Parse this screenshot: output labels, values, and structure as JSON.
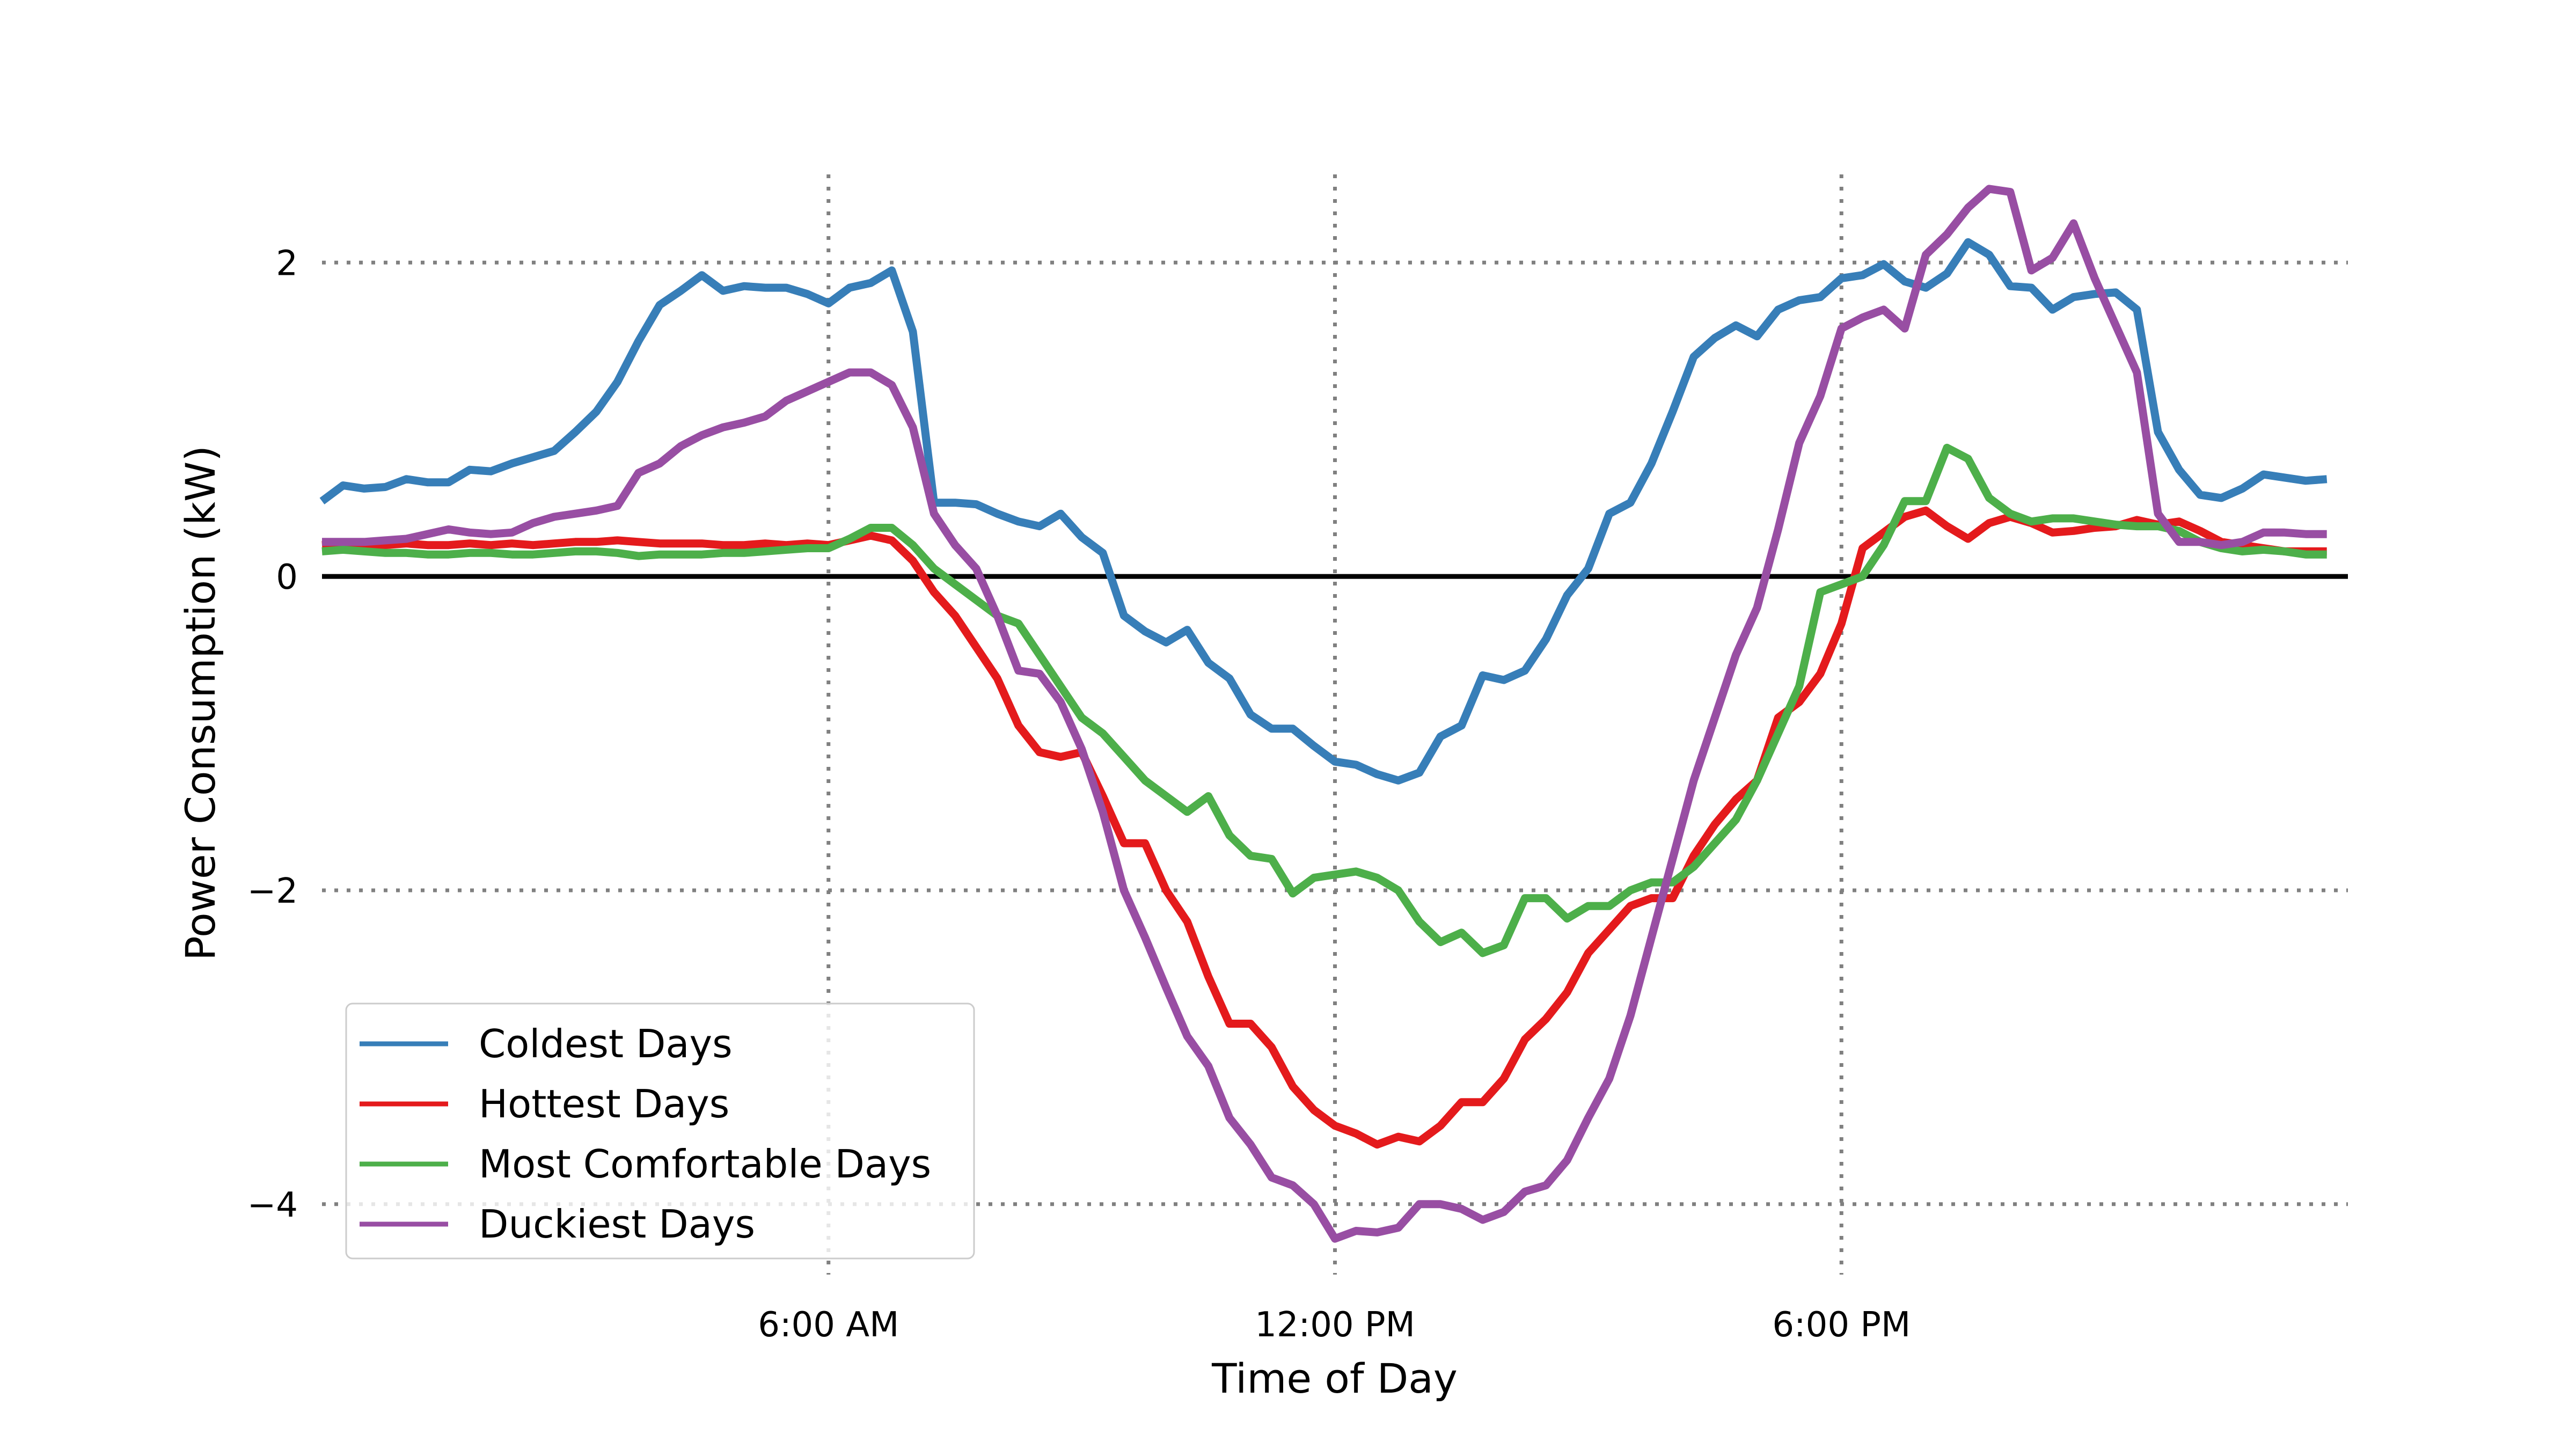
{
  "chart_data": {
    "type": "line",
    "title": "",
    "xlabel": "Time of Day",
    "ylabel": "Power Consumption (kW)",
    "x_unit": "hour of day",
    "xlim": [
      0,
      24
    ],
    "ylim": [
      -4.5,
      2.75
    ],
    "x_ticks": [
      {
        "value": 6,
        "label": "6:00 AM"
      },
      {
        "value": 12,
        "label": "12:00 PM"
      },
      {
        "value": 18,
        "label": "6:00 PM"
      }
    ],
    "y_ticks": [
      {
        "value": -4,
        "label": "−4"
      },
      {
        "value": -2,
        "label": "−2"
      },
      {
        "value": 0,
        "label": "0"
      },
      {
        "value": 2,
        "label": "2"
      }
    ],
    "grid": "dotted at ticks",
    "zero_line": true,
    "legend_position": "bottom-left",
    "x_start": 0,
    "x_step": 0.25,
    "series": [
      {
        "name": "Coldest Days",
        "color": "#377eb8",
        "values": [
          0.48,
          0.58,
          0.56,
          0.57,
          0.62,
          0.6,
          0.6,
          0.68,
          0.67,
          0.72,
          0.76,
          0.8,
          0.92,
          1.05,
          1.24,
          1.5,
          1.73,
          1.82,
          1.92,
          1.82,
          1.85,
          1.84,
          1.84,
          1.8,
          1.74,
          1.84,
          1.87,
          1.95,
          1.56,
          0.47,
          0.47,
          0.46,
          0.4,
          0.35,
          0.32,
          0.4,
          0.25,
          0.15,
          -0.25,
          -0.35,
          -0.42,
          -0.34,
          -0.55,
          -0.65,
          -0.88,
          -0.97,
          -0.97,
          -1.08,
          -1.18,
          -1.2,
          -1.26,
          -1.3,
          -1.25,
          -1.02,
          -0.95,
          -0.63,
          -0.66,
          -0.6,
          -0.4,
          -0.12,
          0.05,
          0.4,
          0.47,
          0.72,
          1.05,
          1.4,
          1.52,
          1.6,
          1.53,
          1.7,
          1.76,
          1.78,
          1.9,
          1.92,
          1.99,
          1.88,
          1.84,
          1.93,
          2.13,
          2.05,
          1.85,
          1.84,
          1.7,
          1.78,
          1.8,
          1.81,
          1.7,
          0.92,
          0.68,
          0.52,
          0.5,
          0.56,
          0.65,
          0.63,
          0.61,
          0.62
        ]
      },
      {
        "name": "Hottest Days",
        "color": "#e41a1c",
        "values": [
          0.2,
          0.21,
          0.2,
          0.2,
          0.21,
          0.2,
          0.2,
          0.21,
          0.2,
          0.21,
          0.2,
          0.21,
          0.22,
          0.22,
          0.23,
          0.22,
          0.21,
          0.21,
          0.21,
          0.2,
          0.2,
          0.21,
          0.2,
          0.21,
          0.2,
          0.23,
          0.26,
          0.23,
          0.1,
          -0.1,
          -0.25,
          -0.45,
          -0.65,
          -0.95,
          -1.12,
          -1.15,
          -1.12,
          -1.4,
          -1.7,
          -1.7,
          -2.0,
          -2.2,
          -2.55,
          -2.85,
          -2.85,
          -3.0,
          -3.25,
          -3.4,
          -3.5,
          -3.55,
          -3.62,
          -3.57,
          -3.6,
          -3.5,
          -3.35,
          -3.35,
          -3.2,
          -2.95,
          -2.82,
          -2.65,
          -2.4,
          -2.25,
          -2.1,
          -2.05,
          -2.05,
          -1.78,
          -1.58,
          -1.42,
          -1.3,
          -0.9,
          -0.8,
          -0.62,
          -0.3,
          0.18,
          0.28,
          0.38,
          0.42,
          0.32,
          0.24,
          0.34,
          0.38,
          0.34,
          0.28,
          0.29,
          0.31,
          0.32,
          0.36,
          0.33,
          0.35,
          0.29,
          0.22,
          0.2,
          0.18,
          0.16,
          0.16,
          0.16
        ]
      },
      {
        "name": "Most Comfortable Days",
        "color": "#4daf4a",
        "values": [
          0.16,
          0.17,
          0.16,
          0.15,
          0.15,
          0.14,
          0.14,
          0.15,
          0.15,
          0.14,
          0.14,
          0.15,
          0.16,
          0.16,
          0.15,
          0.13,
          0.14,
          0.14,
          0.14,
          0.15,
          0.15,
          0.16,
          0.17,
          0.18,
          0.18,
          0.24,
          0.31,
          0.31,
          0.2,
          0.05,
          -0.05,
          -0.15,
          -0.25,
          -0.3,
          -0.5,
          -0.7,
          -0.9,
          -1.0,
          -1.15,
          -1.3,
          -1.4,
          -1.5,
          -1.4,
          -1.65,
          -1.78,
          -1.8,
          -2.02,
          -1.92,
          -1.9,
          -1.88,
          -1.92,
          -2.0,
          -2.2,
          -2.33,
          -2.27,
          -2.4,
          -2.35,
          -2.05,
          -2.05,
          -2.18,
          -2.1,
          -2.1,
          -2.0,
          -1.95,
          -1.95,
          -1.85,
          -1.7,
          -1.55,
          -1.3,
          -1.0,
          -0.7,
          -0.1,
          -0.05,
          0.0,
          0.2,
          0.48,
          0.48,
          0.82,
          0.75,
          0.5,
          0.4,
          0.35,
          0.37,
          0.37,
          0.35,
          0.33,
          0.32,
          0.32,
          0.29,
          0.22,
          0.18,
          0.16,
          0.17,
          0.16,
          0.14,
          0.14
        ]
      },
      {
        "name": "Duckiest Days",
        "color": "#984ea3",
        "values": [
          0.22,
          0.22,
          0.22,
          0.23,
          0.24,
          0.27,
          0.3,
          0.28,
          0.27,
          0.28,
          0.34,
          0.38,
          0.4,
          0.42,
          0.45,
          0.66,
          0.72,
          0.83,
          0.9,
          0.95,
          0.98,
          1.02,
          1.12,
          1.18,
          1.24,
          1.3,
          1.3,
          1.22,
          0.95,
          0.4,
          0.2,
          0.05,
          -0.25,
          -0.6,
          -0.62,
          -0.8,
          -1.1,
          -1.5,
          -2.0,
          -2.3,
          -2.62,
          -2.93,
          -3.12,
          -3.45,
          -3.62,
          -3.83,
          -3.88,
          -4.0,
          -4.22,
          -4.17,
          -4.18,
          -4.15,
          -4.0,
          -4.0,
          -4.03,
          -4.1,
          -4.05,
          -3.92,
          -3.88,
          -3.72,
          -3.45,
          -3.2,
          -2.8,
          -2.3,
          -1.8,
          -1.3,
          -0.9,
          -0.5,
          -0.2,
          0.3,
          0.85,
          1.15,
          1.58,
          1.65,
          1.7,
          1.58,
          2.05,
          2.18,
          2.35,
          2.47,
          2.45,
          1.95,
          2.03,
          2.25,
          1.9,
          1.6,
          1.3,
          0.4,
          0.22,
          0.22,
          0.2,
          0.22,
          0.28,
          0.28,
          0.27,
          0.27
        ]
      }
    ]
  }
}
